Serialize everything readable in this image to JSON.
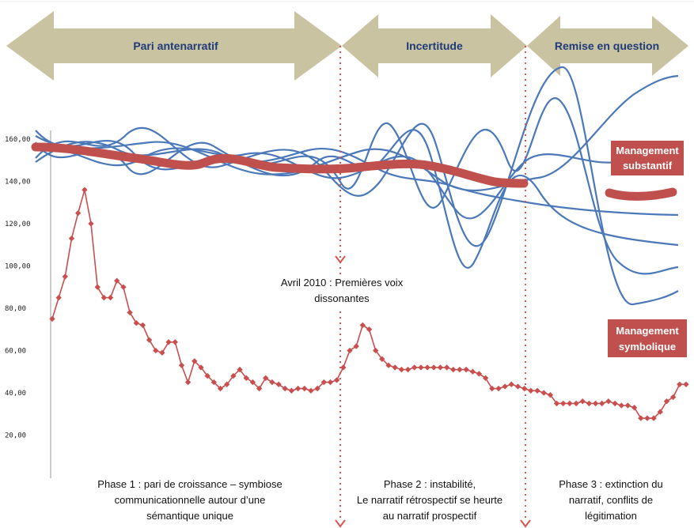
{
  "chart_data": {
    "type": "line",
    "y_ticks": [
      "20,00",
      "40,00",
      "60,00",
      "80,00",
      "100,00",
      "120,00",
      "140,00",
      "160,00"
    ],
    "ylim": [
      0,
      170
    ],
    "grid": false,
    "series": [
      {
        "name": "",
        "color": "#c94f4f",
        "values": [
          75,
          85,
          95,
          113,
          125,
          136,
          120,
          90,
          85,
          85,
          93,
          90,
          78,
          73,
          72,
          65,
          60,
          59,
          64,
          64,
          53,
          45,
          55,
          52,
          48,
          45,
          42,
          44,
          48,
          51,
          47,
          45,
          42,
          47,
          45,
          44,
          42,
          41,
          42,
          42,
          41,
          42,
          45,
          45,
          46,
          52,
          60,
          62,
          72,
          70,
          60,
          56,
          53,
          52,
          51,
          51,
          52,
          52,
          52,
          52,
          52,
          52,
          51,
          51,
          51,
          50,
          49,
          47,
          42,
          42,
          43,
          44,
          43,
          42,
          41,
          41,
          40,
          39,
          35,
          35,
          35,
          35,
          36,
          35,
          35,
          35,
          36,
          35,
          34,
          34,
          33,
          28,
          28,
          28,
          31,
          36,
          38,
          44,
          44
        ]
      }
    ],
    "arrows": [
      {
        "label": "Pari antenarratif"
      },
      {
        "label": "Incertitude"
      },
      {
        "label": "Remise en question"
      }
    ],
    "annotations": {
      "event": [
        "Avril 2010 : Premières voix",
        "dissonantes"
      ],
      "tag_substantif": [
        "Management",
        "substantif"
      ],
      "tag_symbolique": [
        "Management",
        "symbolique"
      ]
    },
    "phases": [
      {
        "lines": [
          "Phase 1 : pari de croissance – symbiose",
          "communicationnelle autour d’une",
          "sémantique unique"
        ]
      },
      {
        "lines": [
          "Phase 2 : instabilité,",
          "Le narratif rétrospectif se heurte",
          "au narratif prospectif"
        ]
      },
      {
        "lines": [
          "Phase 3 : extinction du",
          "narratif, conflits de",
          "légitimation"
        ]
      }
    ],
    "colors": {
      "arrow_fill": "#c9c3a2",
      "blue_lines": "#4a78b8",
      "red_band": "#c0504d",
      "dotted_divider": "#d9534f"
    }
  }
}
